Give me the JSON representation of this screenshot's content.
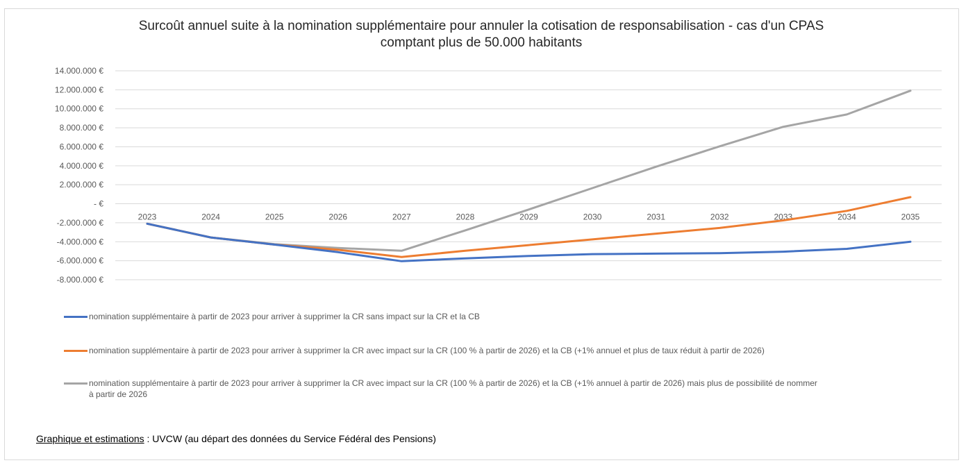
{
  "chart_data": {
    "type": "line",
    "title_line1": "Surcoût annuel suite à la nomination supplémentaire pour annuler la cotisation de responsabilisation - cas d'un CPAS",
    "title_line2": "comptant plus de 50.000 habitants",
    "x": [
      "2023",
      "2024",
      "2025",
      "2026",
      "2027",
      "2028",
      "2029",
      "2030",
      "2031",
      "2032",
      "2033",
      "2034",
      "2035"
    ],
    "ylim": [
      -8000000,
      14000000
    ],
    "yticks": [
      14000000,
      12000000,
      10000000,
      8000000,
      6000000,
      4000000,
      2000000,
      0,
      -2000000,
      -4000000,
      -6000000,
      -8000000
    ],
    "ytick_labels": [
      "14.000.000 €",
      "12.000.000 €",
      "10.000.000 €",
      "8.000.000 €",
      "6.000.000 €",
      "4.000.000 €",
      "2.000.000 €",
      "- €",
      "-2.000.000 €",
      "-4.000.000 €",
      "-6.000.000 €",
      "-8.000.000 €"
    ],
    "grid": true,
    "legend_position": "bottom",
    "series": [
      {
        "name": "nomination supplémentaire à partir de 2023 pour arriver à supprimer la CR sans impact sur la CR et la CB",
        "color": "#4472c4",
        "values": [
          -2100000,
          -3550000,
          -4300000,
          -5100000,
          -6050000,
          -5750000,
          -5500000,
          -5300000,
          -5250000,
          -5200000,
          -5050000,
          -4750000,
          -4000000
        ]
      },
      {
        "name": "nomination supplémentaire à partir de 2023 pour arriver à supprimer la CR avec impact sur la CR (100 % à partir de 2026) et la CB (+1% annuel et plus de taux réduit à partir de 2026)",
        "color": "#ed7d31",
        "values": [
          -2100000,
          -3550000,
          -4300000,
          -4850000,
          -5600000,
          -4950000,
          -4350000,
          -3750000,
          -3150000,
          -2550000,
          -1750000,
          -750000,
          700000
        ]
      },
      {
        "name_line1": "nomination supplémentaire à partir de 2023 pour arriver à supprimer la CR avec impact sur la CR (100 % à partir de 2026) et la CB (+1% annuel à partir de 2026) mais plus de possibilité de nommer",
        "name_line2": "à partir de 2026",
        "color": "#a5a5a5",
        "values": [
          -2100000,
          -3550000,
          -4250000,
          -4650000,
          -4950000,
          -2800000,
          -600000,
          1650000,
          3900000,
          6050000,
          8100000,
          9400000,
          11900000
        ]
      }
    ]
  },
  "source": {
    "label": "Graphique et estimations",
    "text": " : UVCW (au départ des données du Service Fédéral des Pensions)"
  }
}
